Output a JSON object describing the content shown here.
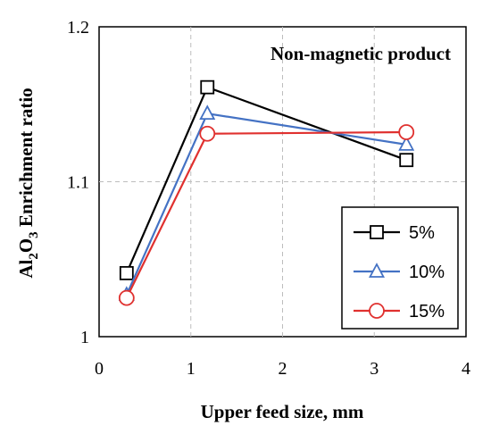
{
  "chart_data": {
    "type": "line",
    "annotation": "Non-magnetic product",
    "xlabel": "Upper feed size, mm",
    "ylabel_parts": {
      "a": "Al",
      "b": "2",
      "c": "O",
      "d": "3",
      "e": " Enrichment ratio"
    },
    "xlim": [
      0,
      4
    ],
    "ylim": [
      1,
      1.2
    ],
    "xticks": [
      0,
      1,
      2,
      3,
      4
    ],
    "xtick_labels": [
      "0",
      "1",
      "2",
      "3",
      "4"
    ],
    "yticks": [
      1,
      1.1,
      1.2
    ],
    "ytick_labels": [
      "1",
      "1.1",
      "1.2"
    ],
    "grid": true,
    "legend_position": "bottom-right",
    "x": [
      0.3,
      1.18,
      3.35
    ],
    "series": [
      {
        "name": "5%",
        "values": [
          1.041,
          1.161,
          1.114
        ],
        "color": "#000000",
        "marker": "square"
      },
      {
        "name": "10%",
        "values": [
          1.027,
          1.144,
          1.124
        ],
        "color": "#4472c4",
        "marker": "triangle"
      },
      {
        "name": "15%",
        "values": [
          1.025,
          1.131,
          1.132
        ],
        "color": "#e0312f",
        "marker": "circle"
      }
    ]
  }
}
